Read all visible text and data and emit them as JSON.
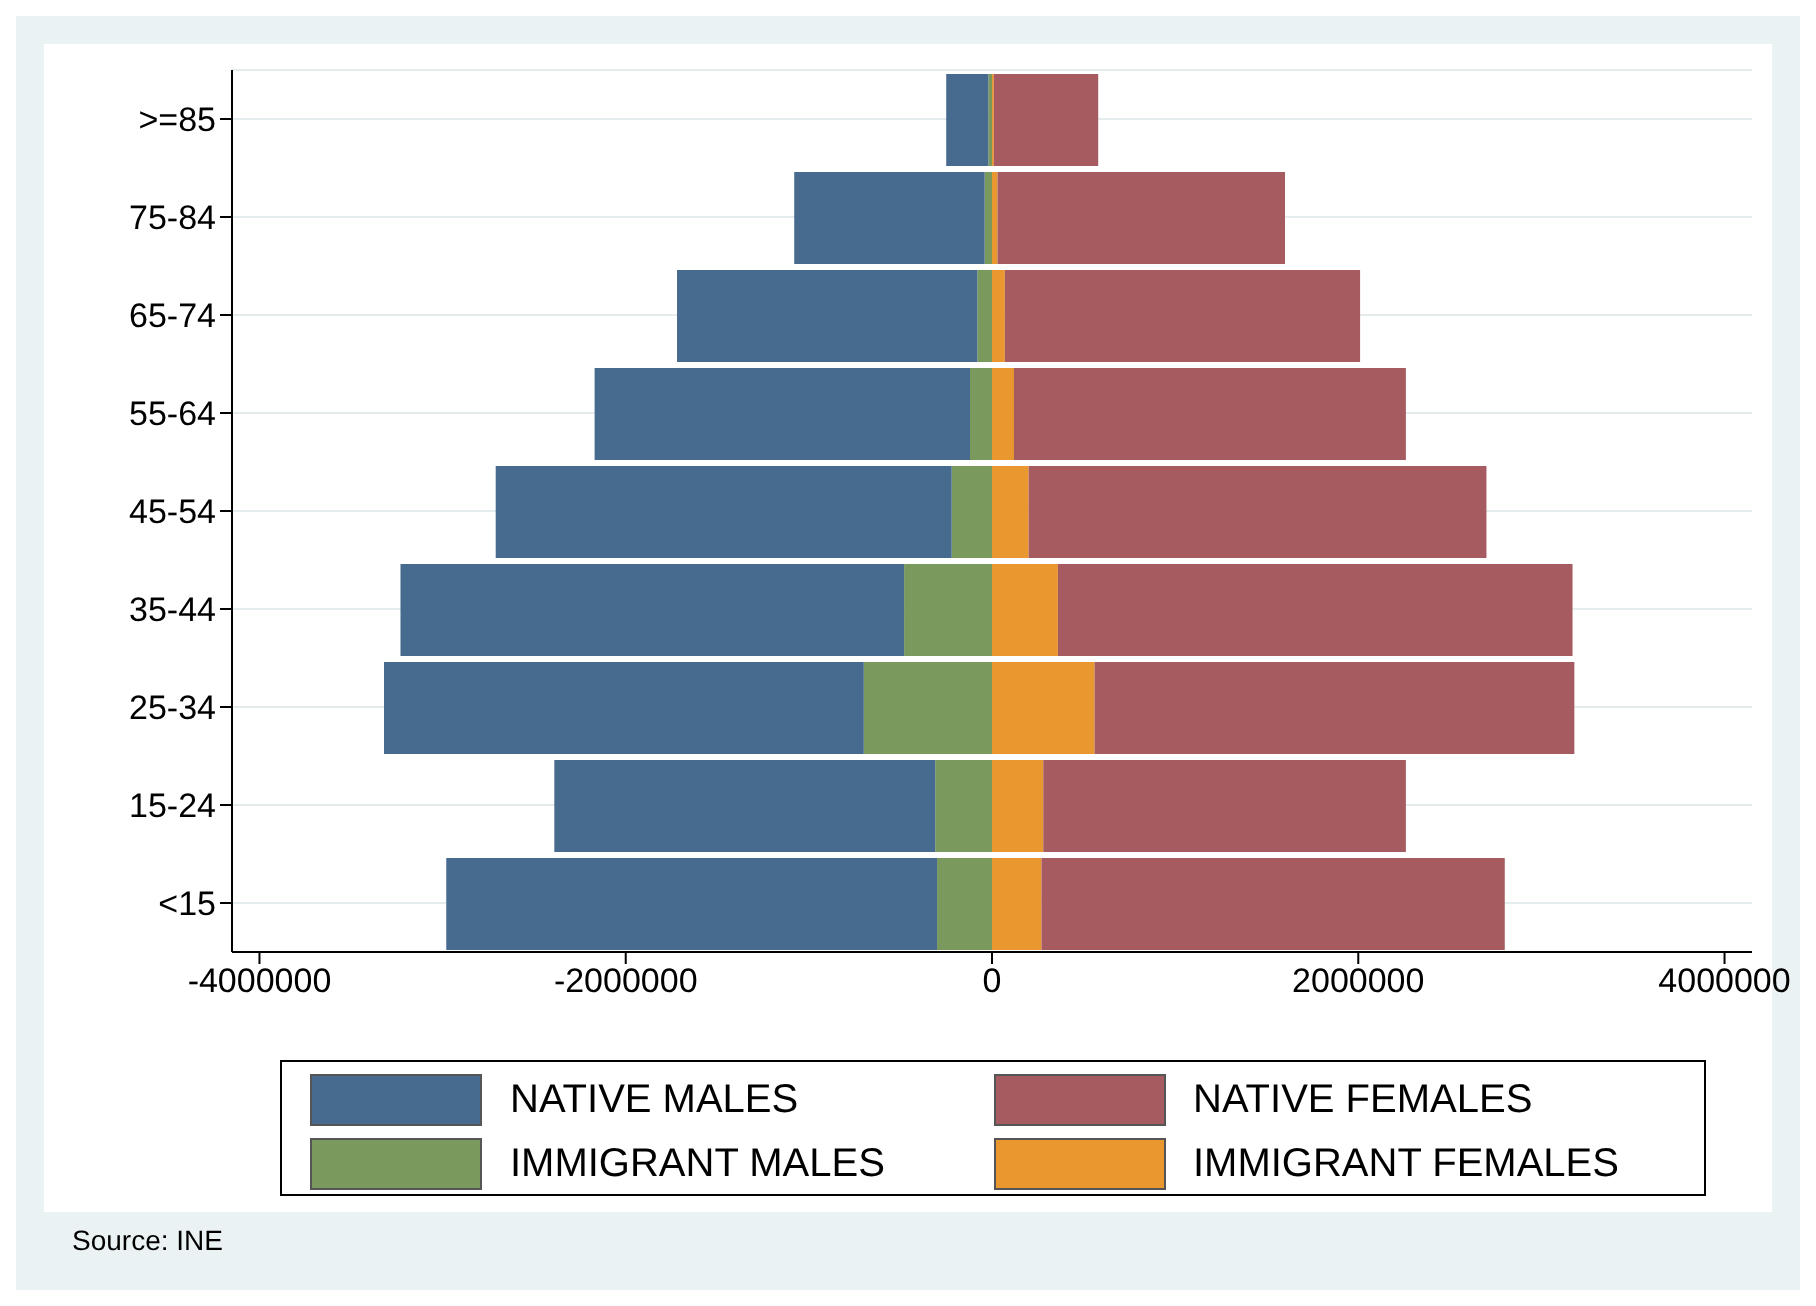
{
  "chart_data": {
    "type": "bar",
    "orientation": "horizontal",
    "stacked": true,
    "categories": [
      ">=85",
      "75-84",
      "65-74",
      "55-64",
      "45-54",
      "35-44",
      "25-34",
      "15-24",
      "<15"
    ],
    "series": [
      {
        "name": "IMMIGRANT MALES",
        "color": "#7a9a5d",
        "values": [
          -20000,
          -40000,
          -80000,
          -120000,
          -220000,
          -480000,
          -700000,
          -310000,
          -300000
        ]
      },
      {
        "name": "NATIVE MALES",
        "color": "#476a8f",
        "values": [
          -230000,
          -1040000,
          -1640000,
          -2050000,
          -2490000,
          -2750000,
          -2620000,
          -2080000,
          -2680000
        ]
      },
      {
        "name": "IMMIGRANT FEMALES",
        "color": "#e9972f",
        "values": [
          10000,
          30000,
          70000,
          120000,
          200000,
          360000,
          560000,
          280000,
          270000
        ]
      },
      {
        "name": "NATIVE FEMALES",
        "color": "#a65b60",
        "values": [
          570000,
          1570000,
          1940000,
          2140000,
          2500000,
          2810000,
          2620000,
          1980000,
          2530000
        ]
      }
    ],
    "xlim": [
      -4150000,
      4150000
    ],
    "xticks": [
      -4000000,
      -2000000,
      0,
      2000000,
      4000000
    ],
    "grid": "y",
    "legend": "bottom",
    "annotations": [
      "Source: INE"
    ]
  }
}
